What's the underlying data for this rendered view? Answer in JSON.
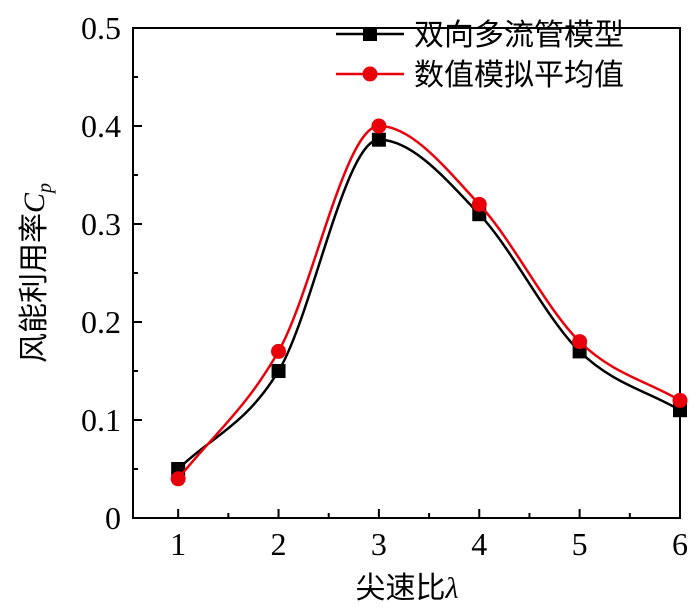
{
  "chart_data": {
    "type": "line",
    "xlabel_text": "尖速比",
    "xlabel_symbol": "λ",
    "ylabel_text": "风能利用率",
    "ylabel_symbol": "C",
    "ylabel_subscript": "p",
    "xlim": [
      0.55,
      6
    ],
    "ylim": [
      0,
      0.5
    ],
    "x_ticks": [
      "1",
      "2",
      "3",
      "4",
      "5",
      "6"
    ],
    "y_ticks": [
      "0",
      "0.1",
      "0.2",
      "0.3",
      "0.4",
      "0.5"
    ],
    "grid": false,
    "legend_position": "top-right",
    "x": [
      1,
      2,
      3,
      4,
      5,
      6
    ],
    "series": [
      {
        "name": "双向多流管模型",
        "color": "#000000",
        "marker": "square",
        "values": [
          0.05,
          0.15,
          0.386,
          0.31,
          0.17,
          0.11
        ]
      },
      {
        "name": "数值模拟平均值",
        "color": "#e8000b",
        "marker": "circle",
        "values": [
          0.04,
          0.17,
          0.4,
          0.32,
          0.18,
          0.12
        ]
      }
    ]
  }
}
